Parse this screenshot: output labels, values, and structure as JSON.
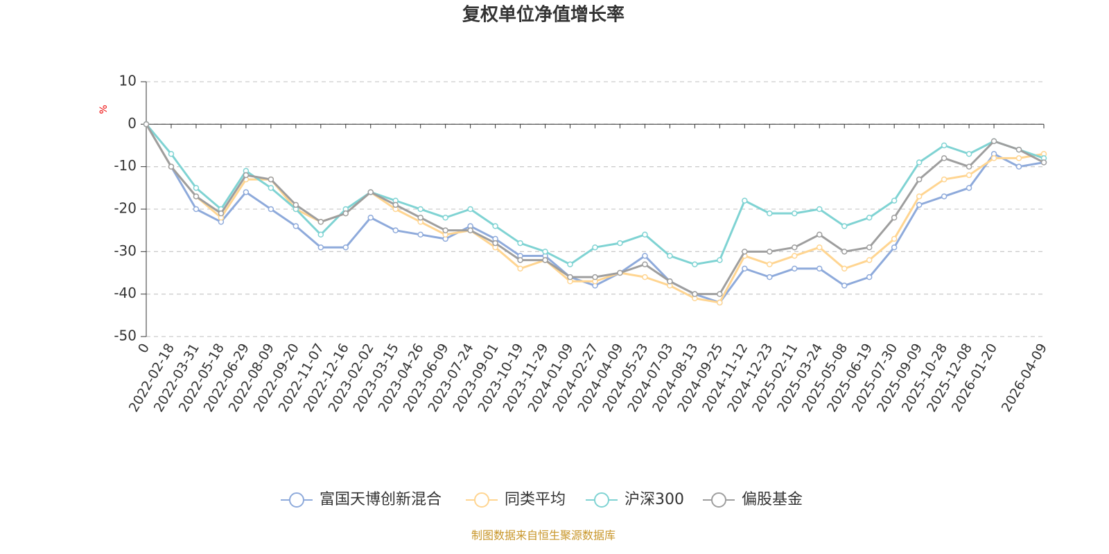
{
  "chart_data": {
    "type": "line",
    "title": "复权单位净值增长率",
    "y_unit": "%",
    "source": "制图数据来自恒生聚源数据库",
    "categories": [
      "0",
      "2022-02-18",
      "2022-03-31",
      "2022-05-18",
      "2022-06-29",
      "2022-08-09",
      "2022-09-20",
      "2022-11-07",
      "2022-12-16",
      "2023-02-02",
      "2023-03-15",
      "2023-04-26",
      "2023-06-09",
      "2023-07-24",
      "2023-09-01",
      "2023-10-19",
      "2023-11-29",
      "2024-01-09",
      "2024-02-27",
      "2024-04-09",
      "2024-05-23",
      "2024-07-03",
      "2024-08-13",
      "2024-09-25",
      "2024-11-12",
      "2024-12-23",
      "2025-02-11",
      "2025-03-24",
      "2025-05-08",
      "2025-06-19",
      "2025-07-30",
      "2025-09-09",
      "2025-10-28",
      "2025-12-08",
      "2026-01-20",
      null,
      "2026-04-09"
    ],
    "series": [
      {
        "name": "富国天博创新混合",
        "color": "#8eaadb",
        "values": [
          0,
          -10,
          -20,
          -23,
          -16,
          -20,
          -24,
          -29,
          -29,
          -22,
          -25,
          -26,
          -27,
          -24,
          -27,
          -31,
          -31,
          -36,
          -38,
          -35,
          -31,
          -37,
          -40,
          -42,
          -34,
          -36,
          -34,
          -34,
          -38,
          -36,
          -29,
          -19,
          -17,
          -15,
          -7,
          -10,
          -9
        ]
      },
      {
        "name": "同类平均",
        "color": "#ffd591",
        "values": [
          0,
          -10,
          -17,
          -22,
          -13,
          -13,
          -20,
          -23,
          -21,
          -16,
          -20,
          -23,
          -26,
          -25,
          -29,
          -34,
          -32,
          -37,
          -37,
          -35,
          -36,
          -38,
          -41,
          -42,
          -31,
          -33,
          -31,
          -29,
          -34,
          -32,
          -27,
          -17,
          -13,
          -12,
          -8,
          -8,
          -7
        ]
      },
      {
        "name": "沪深300",
        "color": "#7fd3d3",
        "values": [
          0,
          -7,
          -15,
          -20,
          -11,
          -15,
          -20,
          -26,
          -20,
          -16,
          -18,
          -20,
          -22,
          -20,
          -24,
          -28,
          -30,
          -33,
          -29,
          -28,
          -26,
          -31,
          -33,
          -32,
          -18,
          -21,
          -21,
          -20,
          -24,
          -22,
          -18,
          -9,
          -5,
          -7,
          -4,
          -6,
          -8
        ]
      },
      {
        "name": "偏股基金",
        "color": "#9e9e9e",
        "values": [
          0,
          -10,
          -17,
          -21,
          -12,
          -13,
          -19,
          -23,
          -21,
          -16,
          -19,
          -22,
          -25,
          -25,
          -28,
          -32,
          -32,
          -36,
          -36,
          -35,
          -33,
          -37,
          -40,
          -40,
          -30,
          -30,
          -29,
          -26,
          -30,
          -29,
          -22,
          -13,
          -8,
          -10,
          -4,
          -6,
          -9
        ]
      }
    ],
    "ylim": [
      -50,
      10
    ],
    "yticks": [
      -50,
      -40,
      -30,
      -20,
      -10,
      0,
      10
    ],
    "grid": true,
    "legend": "bottom"
  }
}
